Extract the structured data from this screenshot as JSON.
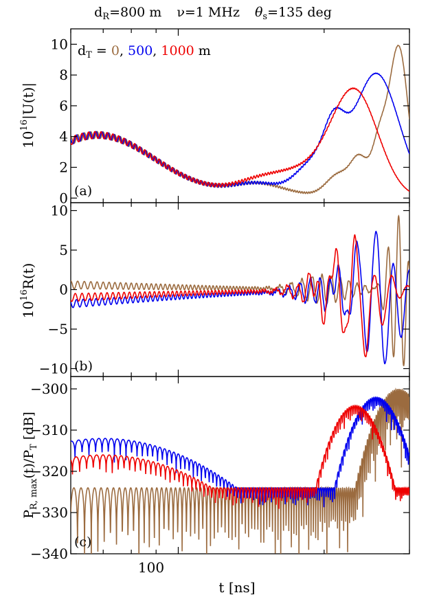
{
  "title": {
    "dR_sym": "d",
    "dR_sub": "R",
    "dR_val": "=800 m",
    "nu": "ν=1 MHz",
    "theta_sym": "θ",
    "theta_sub": "s",
    "theta_val": "=135 deg"
  },
  "legend": {
    "prefix_sym": "d",
    "prefix_sub": "T",
    "prefix_eq": " = ",
    "entries": [
      "0",
      "500",
      "1000"
    ],
    "separator": ", ",
    "unit": " m"
  },
  "colors": {
    "brown": "#9b6b3f",
    "blue": "#0000ee",
    "red": "#ee0000"
  },
  "panel_a": {
    "tag": "(a)",
    "ylabel_pre": "10",
    "ylabel_sup": "16",
    "ylabel_post": "|U(t)|",
    "yticks": [
      "0",
      "2",
      "4",
      "6",
      "8",
      "10"
    ]
  },
  "panel_b": {
    "tag": "(b)",
    "ylabel_pre": "10",
    "ylabel_sup": "16",
    "ylabel_post": "R(t)",
    "yticks": [
      "−10",
      "−5",
      "0",
      "5",
      "10"
    ]
  },
  "panel_c": {
    "tag": "(c)",
    "ylabel_main": "P",
    "ylabel_sub1": "R, max",
    "ylabel_mid": "(t)/P",
    "ylabel_sub2": "T",
    "ylabel_end": " [dB]",
    "yticks": [
      "−340",
      "−330",
      "−320",
      "−310",
      "−300"
    ]
  },
  "xaxis": {
    "label": "t [ns]",
    "tick_label": "100"
  },
  "chart_data": {
    "type": "line",
    "x_scale": "log",
    "x_unit": "ns",
    "xlim": [
      60,
      300
    ],
    "series_order": [
      "0",
      "500",
      "1000"
    ],
    "panels": [
      {
        "id": "a",
        "ylim": [
          -0.3,
          11
        ],
        "peaks": [
          {
            "series": "0",
            "t": 285,
            "y": 9.8
          },
          {
            "series": "500",
            "t": 256,
            "y": 8.1
          },
          {
            "series": "1000",
            "t": 232,
            "y": 6.6
          }
        ]
      },
      {
        "id": "b",
        "ylim": [
          -11,
          11
        ],
        "peaks": [
          {
            "series": "0",
            "t": 285,
            "y": 9.8
          },
          {
            "series": "500",
            "t": 256,
            "y": 8.0
          },
          {
            "series": "1000",
            "t": 232,
            "y": 6.6
          }
        ]
      },
      {
        "id": "c",
        "ylim": [
          -340,
          -297
        ],
        "peaks": [
          {
            "series": "0",
            "t": 285,
            "y": -300
          },
          {
            "series": "500",
            "t": 256,
            "y": -302
          },
          {
            "series": "1000",
            "t": 232,
            "y": -304
          }
        ]
      }
    ]
  }
}
